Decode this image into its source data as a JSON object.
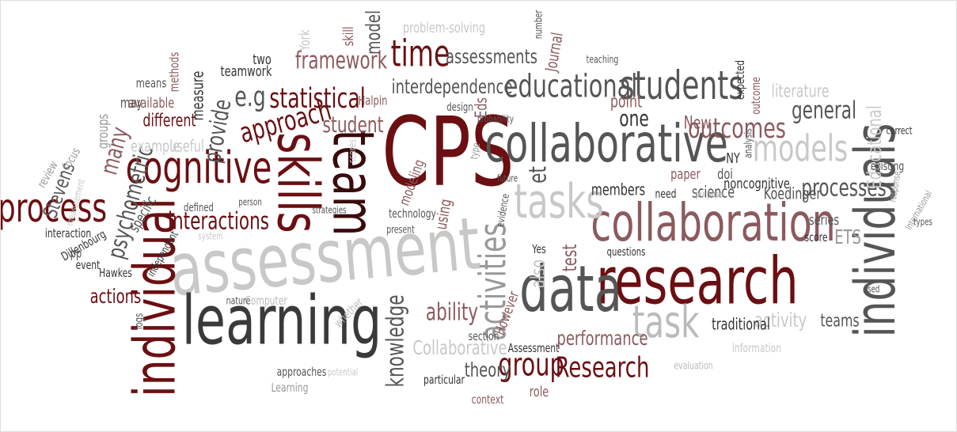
{
  "words": [
    "assessment",
    "learning",
    "CPS",
    "collaborative",
    "collaboration",
    "research",
    "data",
    "tasks",
    "individuals",
    "individual",
    "team",
    "skills",
    "cognitive",
    "process",
    "students",
    "educational",
    "models",
    "time",
    "framework",
    "assessments",
    "interdependence",
    "statistical",
    "approach",
    "e.g",
    "activities",
    "task",
    "knowledge",
    "ability",
    "group",
    "Research",
    "theory",
    "Collaborative",
    "performance",
    "activity",
    "teams",
    "processes",
    "outcomes",
    "general",
    "literature",
    "Educational",
    "psychometric",
    "many",
    "provide",
    "interactions",
    "student",
    "actions",
    "Stevens",
    "different",
    "model",
    "one",
    "point",
    "et",
    "also",
    "test",
    "members",
    "science",
    "noncognitive",
    "ETS",
    "traditional",
    "information",
    "Assessment",
    "However",
    "evaluation",
    "particular",
    "context",
    "role",
    "approaches",
    "Learning",
    "whether",
    "Computer",
    "York",
    "potential",
    "teamwork",
    "measure",
    "available",
    "may",
    "means",
    "methods",
    "groups",
    "focus",
    "review",
    "example",
    "useful",
    "specific",
    "interaction",
    "Dillenbourg",
    "event",
    "Hawkes",
    "independent",
    "pp",
    "logs",
    "nature",
    "defined",
    "two",
    "skill",
    "problem-solving",
    "number",
    "Journal",
    "teaching",
    "expected",
    "outcome",
    "Halpin",
    "Eds",
    "design",
    "probability",
    "New",
    "NY",
    "analysis",
    "doi",
    "paper",
    "need",
    "purpose",
    "Koedinger",
    "score",
    "series",
    "existing",
    "correct",
    "response",
    "International",
    "types",
    "used",
    "Yes",
    "questions",
    "evidence",
    "future",
    "type",
    "using",
    "modeling",
    "technology",
    "present",
    "strategies",
    "person",
    "system",
    "section",
    "scores",
    "measurement"
  ]
}
